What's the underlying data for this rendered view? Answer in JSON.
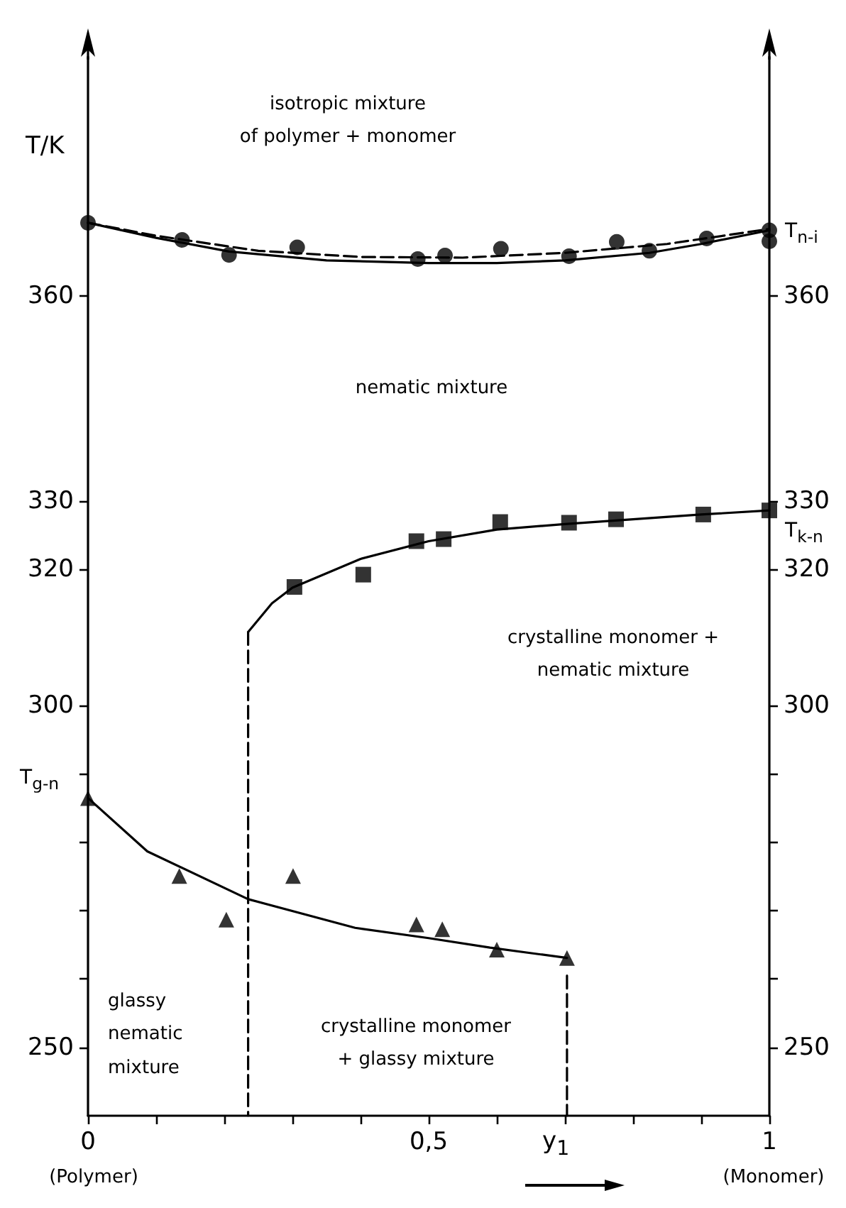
{
  "chart_data": {
    "type": "scatter",
    "xlabel": "y$_{1}$",
    "ylabel": "T/K",
    "xlim": [
      0,
      1
    ],
    "xticks": [
      0,
      {
        "value": 0.1,
        "label": null
      },
      {
        "value": 0.2,
        "label": null
      },
      {
        "value": 0.3,
        "label": null
      },
      {
        "value": 0.4,
        "label": null
      },
      {
        "value": 0.5,
        "label": "0,5"
      },
      {
        "value": 0.6,
        "label": null
      },
      {
        "value": 0.7,
        "label": null
      },
      {
        "value": 0.8,
        "label": null
      },
      {
        "value": 0.9,
        "label": null
      },
      1
    ],
    "ylim": [
      240,
      395
    ],
    "yticks": [
      250,
      {
        "value": 260,
        "label": null
      },
      {
        "value": 270,
        "label": null
      },
      {
        "value": 280,
        "label": null
      },
      {
        "value": 290,
        "label": null
      },
      300,
      320,
      330,
      360
    ],
    "y2lim": [
      240,
      395
    ],
    "y2ticks": [
      250,
      {
        "value": 260,
        "label": null
      },
      {
        "value": 270,
        "label": null
      },
      {
        "value": 280,
        "label": null
      },
      {
        "value": 290,
        "label": null
      },
      300,
      320,
      330,
      360
    ],
    "grid": false,
    "series": [
      {
        "marker": "circle",
        "color": "#000000",
        "x": [
          0,
          0.138,
          0.207,
          0.307,
          0.484,
          0.524,
          0.606,
          0.706,
          0.776,
          0.824,
          0.908,
          1,
          1
        ],
        "values": [
          370.7,
          368.2,
          366.0,
          367.1,
          365.4,
          365.9,
          366.9,
          365.8,
          367.9,
          366.6,
          368.4,
          369.6,
          368.0
        ]
      },
      {
        "type": "line",
        "marker": "none",
        "line_style": "solid",
        "color": "#000000",
        "x": [
          0,
          0.1,
          0.207,
          0.35,
          0.5,
          0.6,
          0.7,
          0.824,
          0.9,
          1
        ],
        "values": [
          370.7,
          368.5,
          366.5,
          365.2,
          364.8,
          364.8,
          365.2,
          366.3,
          367.6,
          369.6
        ]
      },
      {
        "type": "line",
        "marker": "none",
        "line_style": "dashed",
        "color": "#000000",
        "x": [
          0,
          0.1,
          0.25,
          0.4,
          0.55,
          0.7,
          0.85,
          1
        ],
        "values": [
          370.7,
          368.8,
          366.6,
          365.7,
          365.6,
          366.3,
          367.6,
          369.8
        ]
      },
      {
        "marker": "square",
        "color": "#000000",
        "x": [
          0.303,
          0.404,
          0.482,
          0.522,
          0.605,
          0.706,
          0.775,
          0.903,
          1
        ],
        "values": [
          317.4,
          319.2,
          324.1,
          324.4,
          326.9,
          326.8,
          327.3,
          328.0,
          328.6
        ]
      },
      {
        "type": "line",
        "marker": "none",
        "line_style": "solid",
        "color": "#000000",
        "x": [
          0.235,
          0.27,
          0.3,
          0.4,
          0.5,
          0.6,
          0.7,
          0.8,
          0.9,
          1
        ],
        "values": [
          310.8,
          315.0,
          317.3,
          321.5,
          324.1,
          325.8,
          326.6,
          327.3,
          328.0,
          328.6
        ]
      },
      {
        "marker": "triangle",
        "color": "#000000",
        "x": [
          0,
          0.134,
          0.203,
          0.301,
          0.482,
          0.52,
          0.6,
          0.703
        ],
        "values": [
          286.5,
          275.1,
          268.7,
          275.1,
          268.0,
          267.3,
          264.3,
          263.1
        ]
      },
      {
        "type": "line",
        "marker": "none",
        "line_style": "solid",
        "color": "#000000",
        "x": [
          0,
          0.087,
          0.235,
          0.392,
          0.5,
          0.59,
          0.703
        ],
        "values": [
          286.5,
          278.7,
          271.7,
          267.5,
          266.0,
          264.6,
          263.1
        ]
      },
      {
        "type": "line",
        "marker": "none",
        "line_style": "dashed",
        "color": "#000000",
        "x": [
          0.235,
          0.235
        ],
        "values": [
          310.8,
          240
        ]
      },
      {
        "type": "line",
        "marker": "none",
        "line_style": "dashed",
        "color": "#000000",
        "x": [
          0.703,
          0.703
        ],
        "values": [
          260.5,
          240
        ]
      }
    ],
    "annotations": [
      "isotropic mixture\nof polymer + monomer",
      "nematic mixture",
      "crystalline monomer +\nnematic mixture",
      "glassy\nnematic\nmixture",
      "crystalline monomer\n+ glassy mixture",
      "T$_{n-i}$",
      "T$_{k-n}$",
      "T$_{g-n}$",
      "(Polymer)",
      "(Monomer)"
    ]
  }
}
